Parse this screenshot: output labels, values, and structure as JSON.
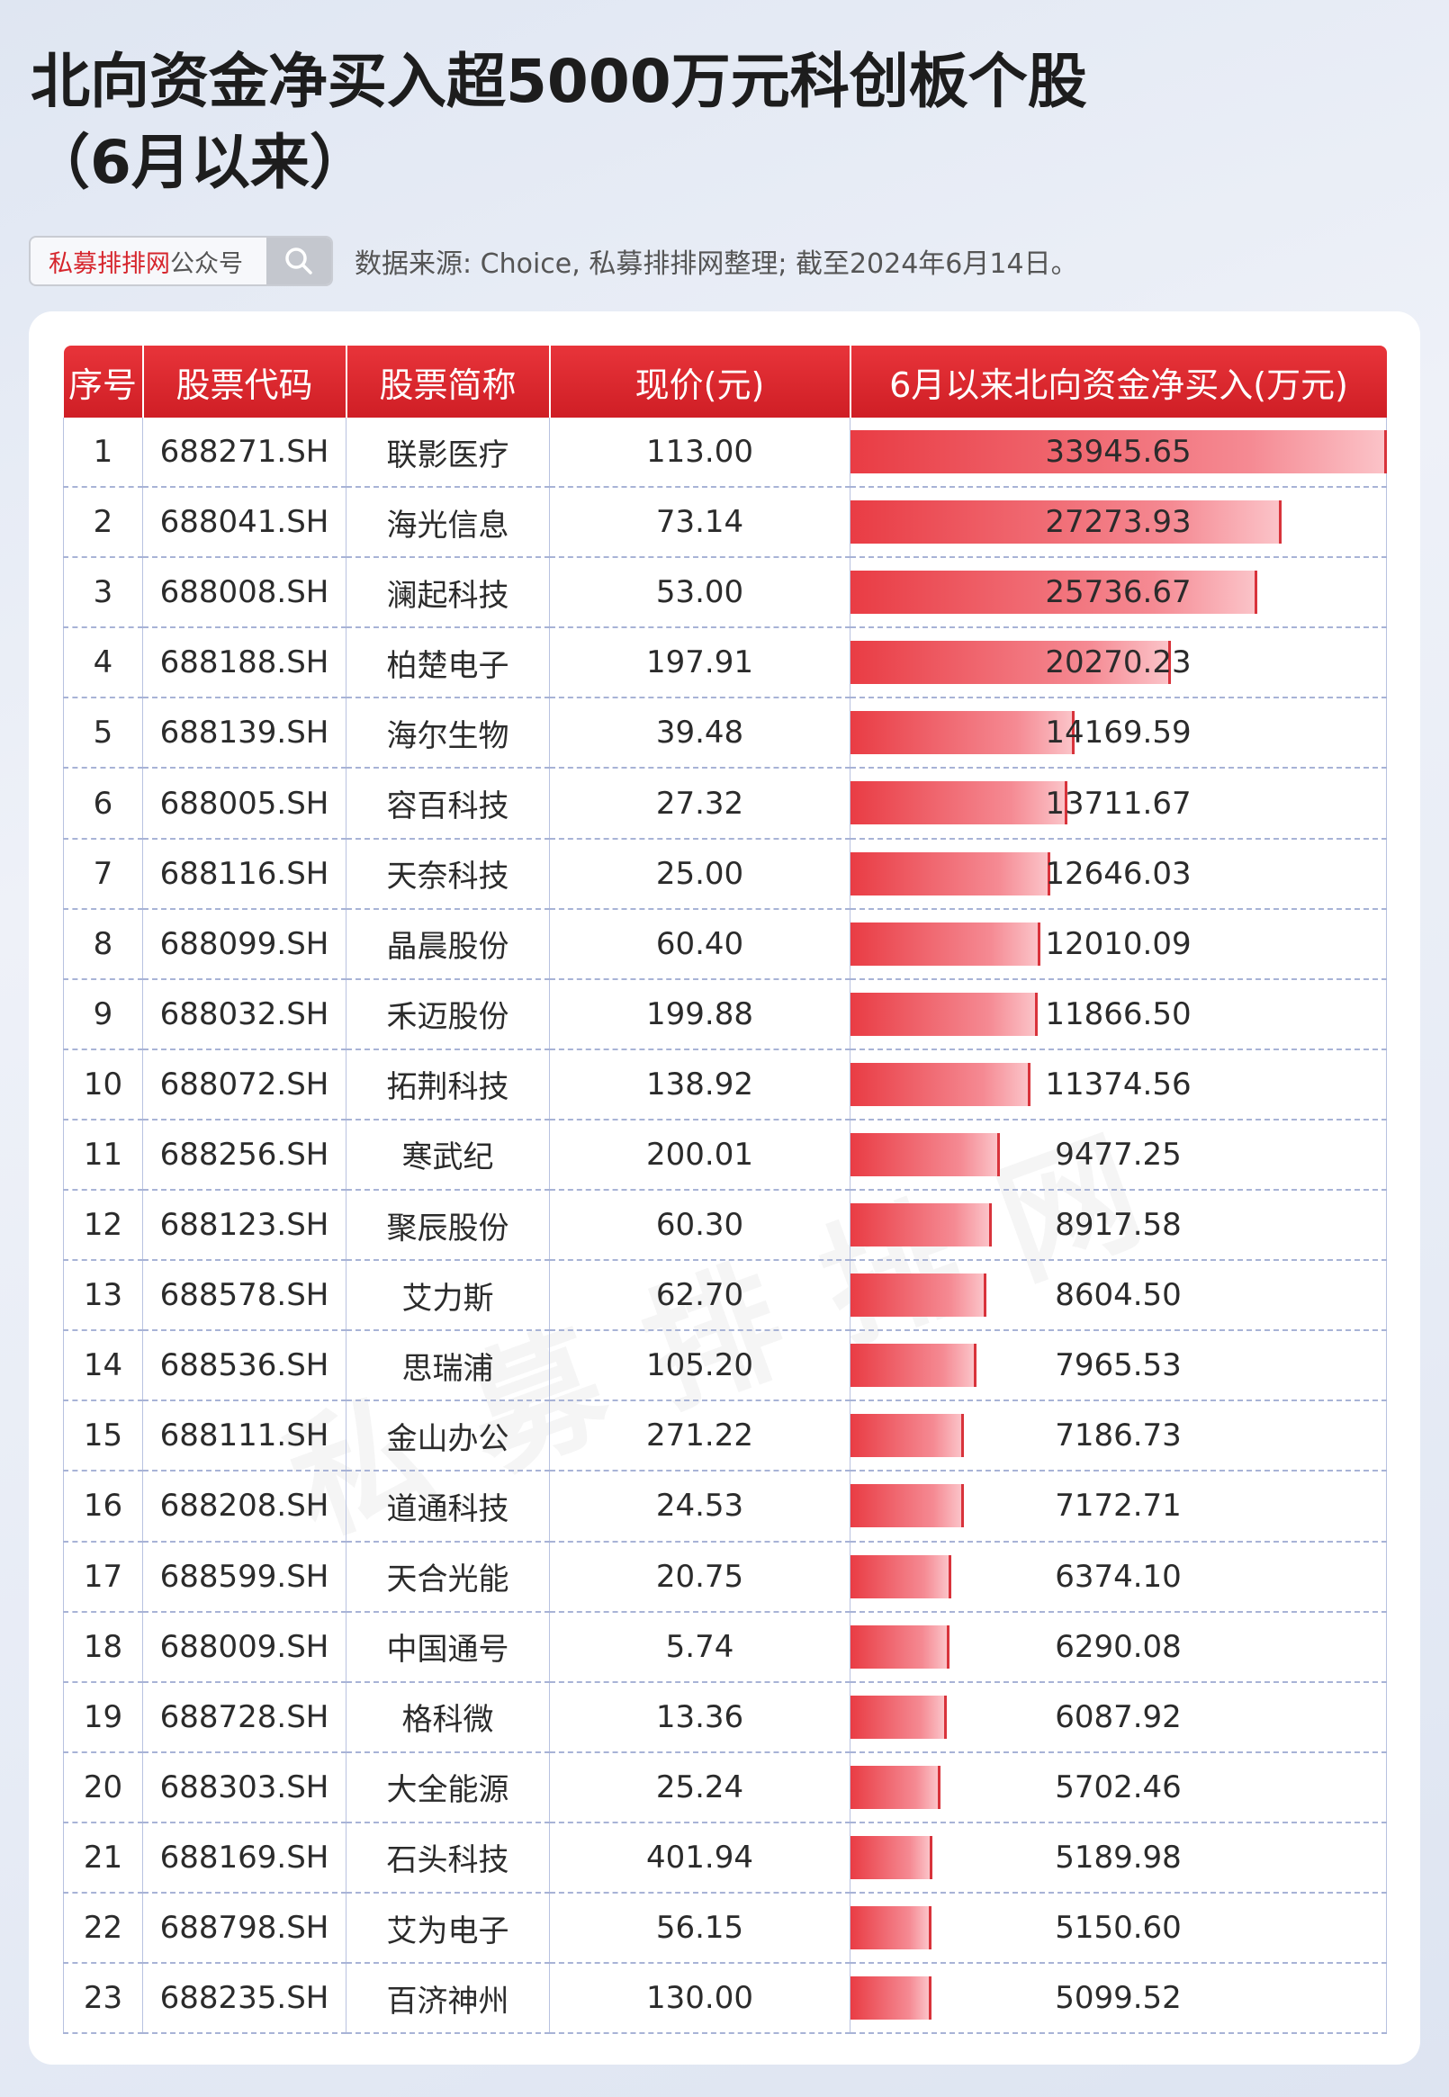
{
  "title": {
    "line1": "北向资金净买入超5000万元科创板个股",
    "line2": "（6月以来）"
  },
  "search": {
    "brand": "私募排排网",
    "suffix": "公众号",
    "icon": "search-icon"
  },
  "source": "数据来源: Choice, 私募排排网整理; 截至2024年6月14日。",
  "watermark": "私募排排网",
  "colors": {
    "header_red": "#d6252c",
    "bar_red": "#e93c44"
  },
  "table": {
    "headers": [
      "序号",
      "股票代码",
      "股票简称",
      "现价(元)",
      "6月以来北向资金净买入(万元)"
    ],
    "rows": [
      {
        "no": "1",
        "code": "688271.SH",
        "name": "联影医疗",
        "price": "113.00",
        "net": "33945.65"
      },
      {
        "no": "2",
        "code": "688041.SH",
        "name": "海光信息",
        "price": "73.14",
        "net": "27273.93"
      },
      {
        "no": "3",
        "code": "688008.SH",
        "name": "澜起科技",
        "price": "53.00",
        "net": "25736.67"
      },
      {
        "no": "4",
        "code": "688188.SH",
        "name": "柏楚电子",
        "price": "197.91",
        "net": "20270.23"
      },
      {
        "no": "5",
        "code": "688139.SH",
        "name": "海尔生物",
        "price": "39.48",
        "net": "14169.59"
      },
      {
        "no": "6",
        "code": "688005.SH",
        "name": "容百科技",
        "price": "27.32",
        "net": "13711.67"
      },
      {
        "no": "7",
        "code": "688116.SH",
        "name": "天奈科技",
        "price": "25.00",
        "net": "12646.03"
      },
      {
        "no": "8",
        "code": "688099.SH",
        "name": "晶晨股份",
        "price": "60.40",
        "net": "12010.09"
      },
      {
        "no": "9",
        "code": "688032.SH",
        "name": "禾迈股份",
        "price": "199.88",
        "net": "11866.50"
      },
      {
        "no": "10",
        "code": "688072.SH",
        "name": "拓荆科技",
        "price": "138.92",
        "net": "11374.56"
      },
      {
        "no": "11",
        "code": "688256.SH",
        "name": "寒武纪",
        "price": "200.01",
        "net": "9477.25"
      },
      {
        "no": "12",
        "code": "688123.SH",
        "name": "聚辰股份",
        "price": "60.30",
        "net": "8917.58"
      },
      {
        "no": "13",
        "code": "688578.SH",
        "name": "艾力斯",
        "price": "62.70",
        "net": "8604.50"
      },
      {
        "no": "14",
        "code": "688536.SH",
        "name": "思瑞浦",
        "price": "105.20",
        "net": "7965.53"
      },
      {
        "no": "15",
        "code": "688111.SH",
        "name": "金山办公",
        "price": "271.22",
        "net": "7186.73"
      },
      {
        "no": "16",
        "code": "688208.SH",
        "name": "道通科技",
        "price": "24.53",
        "net": "7172.71"
      },
      {
        "no": "17",
        "code": "688599.SH",
        "name": "天合光能",
        "price": "20.75",
        "net": "6374.10"
      },
      {
        "no": "18",
        "code": "688009.SH",
        "name": "中国通号",
        "price": "5.74",
        "net": "6290.08"
      },
      {
        "no": "19",
        "code": "688728.SH",
        "name": "格科微",
        "price": "13.36",
        "net": "6087.92"
      },
      {
        "no": "20",
        "code": "688303.SH",
        "name": "大全能源",
        "price": "25.24",
        "net": "5702.46"
      },
      {
        "no": "21",
        "code": "688169.SH",
        "name": "石头科技",
        "price": "401.94",
        "net": "5189.98"
      },
      {
        "no": "22",
        "code": "688798.SH",
        "name": "艾为电子",
        "price": "56.15",
        "net": "5150.60"
      },
      {
        "no": "23",
        "code": "688235.SH",
        "name": "百济神州",
        "price": "130.00",
        "net": "5099.52"
      }
    ]
  }
}
